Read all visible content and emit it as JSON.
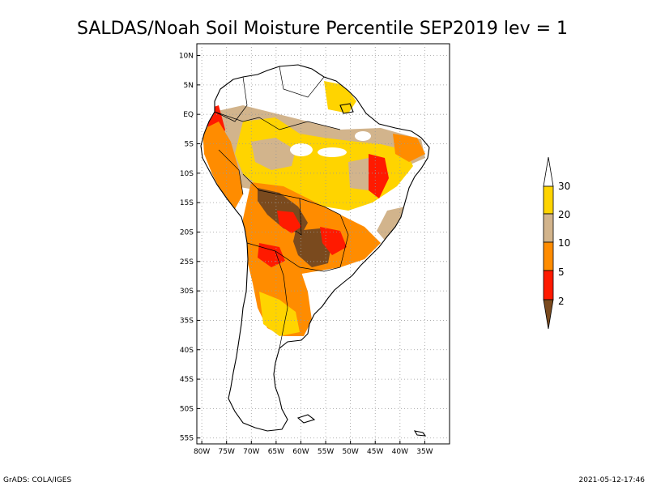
{
  "title": "SALDAS/Noah Soil Moisture Percentile SEP2019 lev = 1",
  "map": {
    "lon_min": -81,
    "lon_max": -30,
    "lat_min": -56,
    "lat_max": 12,
    "lat_ticks": [
      {
        "value": 10,
        "label": "10N"
      },
      {
        "value": 5,
        "label": "5N"
      },
      {
        "value": 0,
        "label": "EQ"
      },
      {
        "value": -5,
        "label": "5S"
      },
      {
        "value": -10,
        "label": "10S"
      },
      {
        "value": -15,
        "label": "15S"
      },
      {
        "value": -20,
        "label": "20S"
      },
      {
        "value": -25,
        "label": "25S"
      },
      {
        "value": -30,
        "label": "30S"
      },
      {
        "value": -35,
        "label": "35S"
      },
      {
        "value": -40,
        "label": "40S"
      },
      {
        "value": -45,
        "label": "45S"
      },
      {
        "value": -50,
        "label": "50S"
      },
      {
        "value": -55,
        "label": "55S"
      }
    ],
    "lon_ticks": [
      {
        "value": -80,
        "label": "80W"
      },
      {
        "value": -75,
        "label": "75W"
      },
      {
        "value": -70,
        "label": "70W"
      },
      {
        "value": -65,
        "label": "65W"
      },
      {
        "value": -60,
        "label": "60W"
      },
      {
        "value": -55,
        "label": "55W"
      },
      {
        "value": -50,
        "label": "50W"
      },
      {
        "value": -45,
        "label": "45W"
      },
      {
        "value": -40,
        "label": "40W"
      },
      {
        "value": -35,
        "label": "35W"
      }
    ],
    "grid": true
  },
  "colorbar": {
    "levels": [
      {
        "label": "2"
      },
      {
        "label": "5"
      },
      {
        "label": "10"
      },
      {
        "label": "20"
      },
      {
        "label": "30"
      }
    ],
    "colors": {
      "below_2": "#7a4a1e",
      "2_5": "#ff1a00",
      "5_10": "#ff8c00",
      "10_20": "#d2b48c",
      "20_30": "#ffd400",
      "above_30": "#ffffff"
    }
  },
  "footer": {
    "left": "GrADS: COLA/IGES",
    "right": "2021-05-12-17:46"
  }
}
